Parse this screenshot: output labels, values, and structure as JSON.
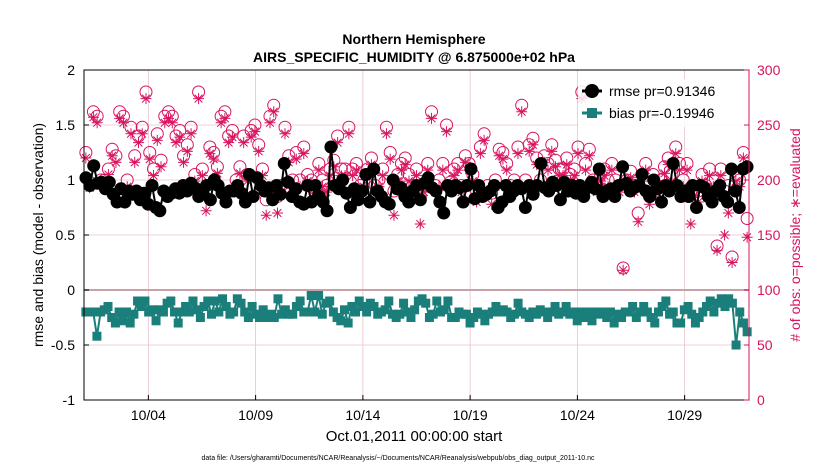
{
  "chart_data": {
    "type": "line",
    "title_line1": "Northern Hemisphere",
    "title_line2": "AIRS_SPECIFIC_HUMIDITY @ 6.875000e+02 hPa",
    "xlabel": "Oct.01,2011 00:00:00 start",
    "ylabel_left": "rmse and bias (model - observation)",
    "ylabel_right": "# of obs: o=possible; ∗=evaluated",
    "footer": "data file: /Users/gharamti/Documents/NCAR/Reanalysis/~/Documents/NCAR/Reanalysis/webpub/obs_diag_output_2011-10.nc",
    "xlim": [
      0,
      31
    ],
    "ylim_left": [
      -1,
      2
    ],
    "ylim_right": [
      0,
      300
    ],
    "x_ticks": [
      3,
      8,
      13,
      18,
      23,
      28
    ],
    "x_tick_labels": [
      "10/04",
      "10/09",
      "10/14",
      "10/19",
      "10/24",
      "10/29"
    ],
    "y_ticks_left": [
      -1,
      -0.5,
      0,
      0.5,
      1,
      1.5,
      2
    ],
    "y_tick_labels_left": [
      "-1",
      "-0.5",
      "0",
      "0.5",
      "1",
      "1.5",
      "2"
    ],
    "y_ticks_right": [
      0,
      50,
      100,
      150,
      200,
      250,
      300
    ],
    "y_tick_labels_right": [
      "0",
      "50",
      "100",
      "150",
      "200",
      "250",
      "300"
    ],
    "colors": {
      "rmse": "#000000",
      "bias": "#1a7f7a",
      "obs": "#d8135f",
      "zero_line": "#c8a0a8",
      "grid": "#e6c2cc"
    },
    "series": [
      {
        "name": "rmse pr=0.91346",
        "marker": "circle",
        "values": [
          1.02,
          0.95,
          1.13,
          0.97,
          0.98,
          0.92,
          0.98,
          0.87,
          0.8,
          0.92,
          0.8,
          0.9,
          0.87,
          0.9,
          0.82,
          0.88,
          0.78,
          0.95,
          0.75,
          0.72,
          0.9,
          0.85,
          0.88,
          0.92,
          0.88,
          0.95,
          0.9,
          0.97,
          0.93,
          0.85,
          0.9,
          0.95,
          0.82,
          1.0,
          0.95,
          0.88,
          0.8,
          0.9,
          0.9,
          0.95,
          0.88,
          0.8,
          1.05,
          0.85,
          1.02,
          0.95,
          0.9,
          0.93,
          0.82,
          0.95,
          0.87,
          1.15,
          0.98,
          0.85,
          0.92,
          0.8,
          0.78,
          0.95,
          0.8,
          0.95,
          0.85,
          0.8,
          0.72,
          1.3,
          0.95,
          0.92,
          1.0,
          0.88,
          0.75,
          0.92,
          0.82,
          0.9,
          1.05,
          0.8,
          1.1,
          0.9,
          0.85,
          0.8,
          0.78,
          1.0,
          0.92,
          0.93,
          0.85,
          0.8,
          0.9,
          0.95,
          0.82,
          0.97,
          1.02,
          0.93,
          0.9,
          0.8,
          0.7,
          0.95,
          0.9,
          0.95,
          0.93,
          0.8,
          0.95,
          1.1,
          0.83,
          0.95,
          0.85,
          0.87,
          0.9,
          0.95,
          0.75,
          0.8,
          0.95,
          0.85,
          0.9,
          0.95,
          0.92,
          0.75,
          0.95,
          0.87,
          0.95,
          1.15,
          0.93,
          0.9,
          0.98,
          0.95,
          0.82,
          0.98,
          0.9,
          0.95,
          0.88,
          0.95,
          0.85,
          0.93,
          0.98,
          0.92,
          1.1,
          0.85,
          0.9,
          0.92,
          0.85,
          0.95,
          1.12,
          0.97,
          0.9,
          0.93,
          0.95,
          1.05,
          0.9,
          0.85,
          1.0,
          0.92,
          0.8,
          0.95,
          0.9,
          1.15,
          0.95,
          0.85,
          0.9,
          0.85,
          0.95,
          0.75,
          0.95,
          0.93,
          0.85,
          0.8,
          0.9,
          0.95,
          0.85,
          0.8,
          1.1,
          0.9,
          0.75,
          1.1,
          1.12
        ]
      },
      {
        "name": "bias pr=-0.19946",
        "marker": "square",
        "values": [
          -0.2,
          -0.2,
          -0.2,
          -0.42,
          -0.2,
          -0.18,
          -0.15,
          -0.25,
          -0.3,
          -0.2,
          -0.28,
          -0.2,
          -0.3,
          -0.22,
          -0.1,
          -0.15,
          -0.1,
          -0.2,
          -0.18,
          -0.28,
          -0.18,
          -0.2,
          -0.12,
          -0.1,
          -0.2,
          -0.3,
          -0.2,
          -0.15,
          -0.2,
          -0.1,
          -0.18,
          -0.25,
          -0.15,
          -0.1,
          -0.22,
          -0.1,
          -0.2,
          -0.08,
          -0.15,
          -0.22,
          -0.2,
          -0.08,
          -0.12,
          -0.2,
          -0.25,
          -0.15,
          -0.22,
          -0.25,
          -0.18,
          -0.25,
          -0.22,
          -0.25,
          -0.08,
          -0.22,
          -0.18,
          -0.22,
          -0.22,
          -0.15,
          -0.1,
          -0.2,
          -0.2,
          -0.05,
          -0.2,
          -0.05,
          -0.22,
          -0.12,
          -0.1,
          -0.2,
          -0.25,
          -0.28,
          -0.18,
          -0.3,
          -0.15,
          -0.2,
          -0.1,
          -0.15,
          -0.2,
          -0.12,
          -0.15,
          -0.22,
          -0.2,
          -0.18,
          -0.1,
          -0.22,
          -0.25,
          -0.22,
          -0.12,
          -0.2,
          -0.25,
          -0.18,
          -0.1,
          -0.08,
          -0.12,
          -0.25,
          -0.22,
          -0.1,
          -0.2,
          -0.18,
          -0.1,
          -0.25,
          -0.25,
          -0.2,
          -0.22,
          -0.22,
          -0.3,
          -0.25,
          -0.2,
          -0.22,
          -0.28,
          -0.22,
          -0.2,
          -0.15,
          -0.2,
          -0.18,
          -0.2,
          -0.25,
          -0.22,
          -0.12,
          -0.2,
          -0.22,
          -0.25,
          -0.2,
          -0.22,
          -0.18,
          -0.2,
          -0.25,
          -0.2,
          -0.15,
          -0.22,
          -0.2,
          -0.15,
          -0.22,
          -0.2,
          -0.28,
          -0.2,
          -0.25,
          -0.2,
          -0.28,
          -0.2,
          -0.22,
          -0.2,
          -0.25,
          -0.2,
          -0.3,
          -0.22,
          -0.25,
          -0.2,
          -0.2,
          -0.15,
          -0.25,
          -0.2,
          -0.15,
          -0.2,
          -0.25,
          -0.3,
          -0.2,
          -0.15,
          -0.1,
          -0.22,
          -0.2,
          -0.3,
          -0.3,
          -0.18,
          -0.15,
          -0.22,
          -0.3,
          -0.25,
          -0.2,
          -0.15,
          -0.1,
          -0.2,
          -0.12,
          -0.08,
          -0.15,
          -0.08,
          -0.12,
          -0.5,
          -0.2,
          -0.3,
          -0.38
        ]
      },
      {
        "name": "# obs possible",
        "marker": "open-circle",
        "axis": "right",
        "values": [
          225,
          198,
          262,
          258,
          200,
          200,
          210,
          228,
          222,
          262,
          258,
          200,
          248,
          222,
          240,
          248,
          280,
          225,
          210,
          242,
          218,
          258,
          262,
          258,
          240,
          245,
          222,
          232,
          248,
          205,
          280,
          210,
          190,
          230,
          225,
          212,
          258,
          262,
          240,
          245,
          200,
          212,
          240,
          205,
          245,
          250,
          232,
          210,
          182,
          258,
          268,
          185,
          195,
          248,
          222,
          200,
          225,
          200,
          230,
          205,
          200,
          192,
          215,
          200,
          195,
          210,
          218,
          240,
          210,
          210,
          248,
          210,
          215,
          195,
          200,
          210,
          220,
          195,
          200,
          210,
          248,
          225,
          190,
          205,
          215,
          220,
          205,
          195,
          210,
          185,
          195,
          215,
          262,
          195,
          200,
          215,
          250,
          198,
          210,
          215,
          195,
          222,
          215,
          205,
          190,
          230,
          242,
          195,
          188,
          200,
          228,
          225,
          215,
          195,
          200,
          230,
          268,
          200,
          232,
          238,
          220,
          200,
          222,
          215,
          232,
          218,
          210,
          210,
          220,
          205,
          210,
          230,
          280,
          215,
          228,
          200,
          195,
          205,
          210,
          200,
          215,
          200,
          195,
          120,
          200,
          208,
          195,
          170,
          205,
          215,
          185,
          205,
          195,
          200,
          212,
          220,
          205,
          230,
          215,
          200,
          215,
          190,
          192,
          190,
          205,
          195,
          210,
          200,
          140,
          210,
          190,
          195,
          130,
          205,
          200,
          225,
          165
        ]
      },
      {
        "name": "# obs evaluated",
        "marker": "star",
        "axis": "right",
        "values": [
          220,
          193,
          257,
          252,
          195,
          195,
          205,
          222,
          216,
          256,
          252,
          194,
          242,
          216,
          234,
          242,
          274,
          219,
          204,
          236,
          212,
          252,
          256,
          252,
          234,
          239,
          216,
          226,
          242,
          199,
          274,
          204,
          172,
          224,
          219,
          206,
          252,
          256,
          234,
          239,
          194,
          206,
          234,
          199,
          239,
          244,
          226,
          204,
          168,
          252,
          262,
          170,
          189,
          242,
          216,
          194,
          219,
          194,
          224,
          199,
          194,
          186,
          209,
          194,
          189,
          204,
          212,
          234,
          204,
          204,
          242,
          204,
          209,
          189,
          194,
          204,
          214,
          189,
          194,
          204,
          242,
          219,
          168,
          199,
          209,
          214,
          199,
          189,
          204,
          160,
          189,
          209,
          256,
          189,
          194,
          209,
          244,
          192,
          204,
          209,
          189,
          216,
          209,
          199,
          180,
          224,
          236,
          189,
          178,
          194,
          222,
          219,
          209,
          189,
          194,
          224,
          262,
          194,
          226,
          232,
          214,
          194,
          216,
          209,
          226,
          212,
          204,
          204,
          214,
          199,
          204,
          224,
          274,
          209,
          222,
          194,
          189,
          199,
          204,
          194,
          209,
          194,
          189,
          118,
          194,
          202,
          189,
          162,
          199,
          209,
          178,
          199,
          189,
          194,
          206,
          214,
          199,
          224,
          209,
          194,
          209,
          160,
          186,
          180,
          199,
          189,
          204,
          194,
          136,
          204,
          150,
          170,
          125,
          199,
          194,
          220,
          148
        ]
      }
    ]
  }
}
